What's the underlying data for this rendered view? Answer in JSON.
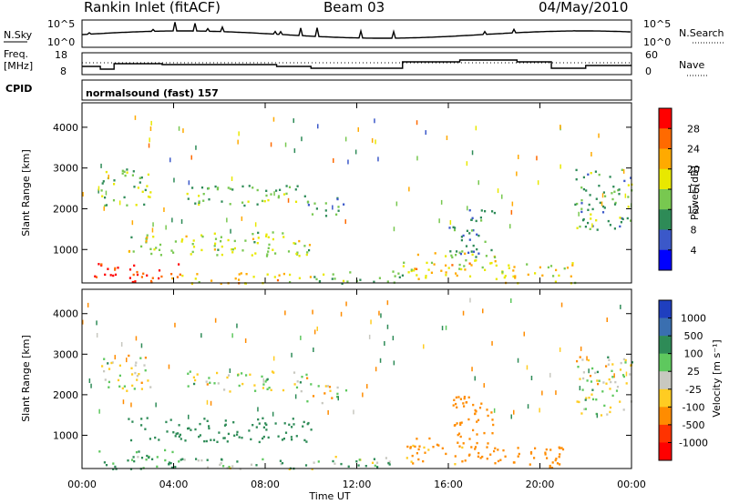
{
  "header": {
    "station": "Rankin Inlet (fitACF)",
    "beam": "Beam 03",
    "date": "04/May/2010"
  },
  "noise_panel": {
    "left_label": "N.Sky",
    "right_label": "N.Search",
    "left_ticks": [
      "10^5",
      "10^0"
    ],
    "right_ticks": [
      "10^5",
      "10^0"
    ]
  },
  "freq_panel": {
    "left_label_1": "Freq.",
    "left_label_2": "[MHz]",
    "right_label": "Nave",
    "left_ticks": [
      "18",
      "8"
    ],
    "right_ticks": [
      "60",
      "0"
    ]
  },
  "cpid": {
    "label": "CPID",
    "text": "normalsound (fast) 157"
  },
  "chart_data": [
    {
      "type": "heatmap",
      "name": "power",
      "x": [
        "00:00",
        "04:00",
        "08:00",
        "12:00",
        "16:00",
        "20:00",
        "00:00"
      ],
      "xlabel": "Time UT",
      "ylabel": "Slant Range [km]",
      "y_ticks": [
        1000,
        2000,
        3000,
        4000
      ],
      "ylim": [
        180,
        4600
      ],
      "colorbar_label": "Power [dB]",
      "colorbar_ticks": [
        "28",
        "24",
        "20",
        "16",
        "12",
        "8",
        "4"
      ],
      "colorbar_colors": [
        "#ff0000",
        "#ff6a00",
        "#ffaa00",
        "#e8e800",
        "#78c850",
        "#2e8b57",
        "#3b58c9",
        "#0000ff"
      ],
      "bands": [
        {
          "t0": 0.5,
          "t1": 4.3,
          "r0": 180,
          "r1": 700,
          "level": 26
        },
        {
          "t0": 4.3,
          "t1": 10.0,
          "r0": 180,
          "r1": 450,
          "level": 18
        },
        {
          "t0": 10.0,
          "t1": 14.0,
          "r0": 180,
          "r1": 500,
          "level": 12
        },
        {
          "t0": 14.0,
          "t1": 18.0,
          "r0": 300,
          "r1": 950,
          "level": 18
        },
        {
          "t0": 18.0,
          "t1": 21.5,
          "r0": 200,
          "r1": 750,
          "level": 17
        },
        {
          "t0": 2.0,
          "t1": 10.0,
          "r0": 850,
          "r1": 1450,
          "level": 14
        },
        {
          "t0": 0.8,
          "t1": 3.0,
          "r0": 2100,
          "r1": 3000,
          "level": 12
        },
        {
          "t0": 4.5,
          "t1": 9.8,
          "r0": 2100,
          "r1": 2600,
          "level": 11
        },
        {
          "t0": 9.8,
          "t1": 11.5,
          "r0": 1800,
          "r1": 2300,
          "level": 8
        },
        {
          "t0": 21.5,
          "t1": 24.0,
          "r0": 1500,
          "r1": 3000,
          "level": 10
        },
        {
          "t0": 16.0,
          "t1": 18.0,
          "r0": 800,
          "r1": 2000,
          "level": 8
        }
      ]
    },
    {
      "type": "heatmap",
      "name": "velocity",
      "x": [
        "00:00",
        "04:00",
        "08:00",
        "12:00",
        "16:00",
        "20:00",
        "00:00"
      ],
      "xlabel": "Time UT",
      "ylabel": "Slant Range [km]",
      "y_ticks": [
        1000,
        2000,
        3000,
        4000
      ],
      "ylim": [
        180,
        4600
      ],
      "colorbar_label": "Velocity [m s⁻¹]",
      "colorbar_ticks": [
        "1000",
        "500",
        "100",
        "25",
        "-25",
        "-100",
        "-500",
        "-1000"
      ],
      "colorbar_colors": [
        "#1f3fbf",
        "#3a6fb0",
        "#2e8b57",
        "#5ec85e",
        "#c8c8c0",
        "#ffcc22",
        "#ff8c00",
        "#ff3300",
        "#ff0000"
      ],
      "bands": [
        {
          "t0": 0.5,
          "t1": 4.3,
          "r0": 180,
          "r1": 700,
          "v": 120
        },
        {
          "t0": 4.3,
          "t1": 10.0,
          "r0": 180,
          "r1": 450,
          "v": 80
        },
        {
          "t0": 10.0,
          "t1": 14.0,
          "r0": 180,
          "r1": 500,
          "v": 60
        },
        {
          "t0": 14.0,
          "t1": 18.0,
          "r0": 300,
          "r1": 950,
          "v": -150
        },
        {
          "t0": 18.0,
          "t1": 21.5,
          "r0": 200,
          "r1": 750,
          "v": -300
        },
        {
          "t0": 2.0,
          "t1": 10.0,
          "r0": 850,
          "r1": 1450,
          "v": 300
        },
        {
          "t0": 0.8,
          "t1": 3.0,
          "r0": 2100,
          "r1": 3000,
          "v": 0
        },
        {
          "t0": 4.5,
          "t1": 9.8,
          "r0": 2100,
          "r1": 2600,
          "v": 0
        },
        {
          "t0": 9.8,
          "t1": 11.5,
          "r0": 1800,
          "r1": 2300,
          "v": -20
        },
        {
          "t0": 21.5,
          "t1": 24.0,
          "r0": 1500,
          "r1": 3000,
          "v": 0
        },
        {
          "t0": 16.0,
          "t1": 18.0,
          "r0": 800,
          "r1": 2000,
          "v": -200
        }
      ]
    }
  ]
}
